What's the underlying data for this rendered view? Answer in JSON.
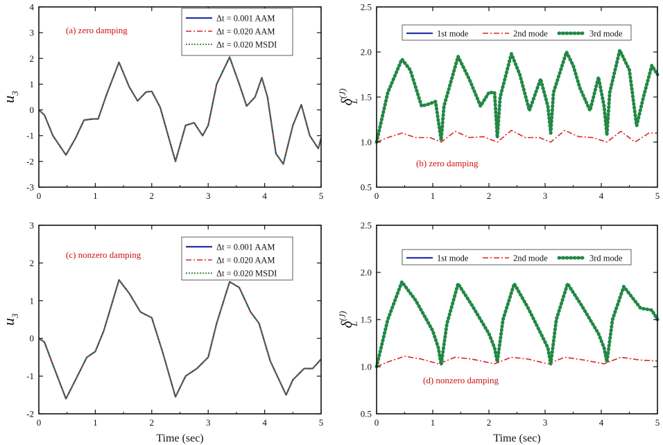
{
  "chart_data": [
    {
      "id": "a",
      "type": "line",
      "annotation": "(a)  zero damping",
      "ylabel": "u",
      "ylabel_sub": "3",
      "xlabel": "",
      "xlim": [
        0,
        5
      ],
      "ylim": [
        -3,
        4
      ],
      "xticks": [
        "0",
        "1",
        "2",
        "3",
        "4",
        "5"
      ],
      "yticks": [
        "-3",
        "-2",
        "-1",
        "0",
        "1",
        "2",
        "3",
        "4"
      ],
      "legend_loc": "top-right",
      "series": [
        {
          "name": "Δt = 0.001  AAM",
          "style": "solid",
          "color": "#2233aa",
          "x": [
            0,
            0.1,
            0.25,
            0.48,
            0.65,
            0.8,
            0.95,
            1.05,
            1.2,
            1.42,
            1.6,
            1.75,
            1.9,
            2.0,
            2.15,
            2.42,
            2.6,
            2.75,
            2.9,
            3.0,
            3.15,
            3.38,
            3.55,
            3.68,
            3.83,
            3.95,
            4.05,
            4.2,
            4.33,
            4.5,
            4.65,
            4.8,
            4.95,
            5.0
          ],
          "y": [
            0,
            -0.2,
            -1.0,
            -1.75,
            -1.1,
            -0.4,
            -0.35,
            -0.35,
            0.6,
            1.85,
            0.9,
            0.35,
            0.7,
            0.72,
            0.1,
            -2.0,
            -0.6,
            -0.5,
            -1.0,
            -0.6,
            1.0,
            2.05,
            1.0,
            0.15,
            0.5,
            1.25,
            0.5,
            -1.7,
            -2.1,
            -0.6,
            0.2,
            -1.0,
            -1.5,
            -1.1
          ]
        },
        {
          "name": "Δt = 0.020  AAM",
          "style": "dashdot",
          "color": "#dd2222",
          "x": [
            0,
            0.1,
            0.25,
            0.48,
            0.65,
            0.8,
            0.95,
            1.05,
            1.2,
            1.42,
            1.6,
            1.75,
            1.9,
            2.0,
            2.15,
            2.42,
            2.6,
            2.75,
            2.9,
            3.0,
            3.15,
            3.38,
            3.55,
            3.68,
            3.83,
            3.95,
            4.05,
            4.2,
            4.33,
            4.5,
            4.65,
            4.8,
            4.95,
            5.0
          ],
          "y": [
            0,
            -0.2,
            -1.0,
            -1.75,
            -1.1,
            -0.4,
            -0.35,
            -0.35,
            0.6,
            1.85,
            0.9,
            0.35,
            0.7,
            0.72,
            0.1,
            -2.0,
            -0.6,
            -0.5,
            -1.0,
            -0.6,
            1.0,
            2.05,
            1.0,
            0.15,
            0.5,
            1.25,
            0.5,
            -1.7,
            -2.1,
            -0.6,
            0.2,
            -1.0,
            -1.5,
            -1.1
          ]
        },
        {
          "name": "Δt = 0.020  MSDI",
          "style": "dotted",
          "color": "#228822",
          "x": [
            0,
            0.1,
            0.25,
            0.48,
            0.65,
            0.8,
            0.95,
            1.05,
            1.2,
            1.42,
            1.6,
            1.75,
            1.9,
            2.0,
            2.15,
            2.42,
            2.6,
            2.75,
            2.9,
            3.0,
            3.15,
            3.38,
            3.55,
            3.68,
            3.83,
            3.95,
            4.05,
            4.2,
            4.33,
            4.5,
            4.65,
            4.8,
            4.95,
            5.0
          ],
          "y": [
            0,
            -0.2,
            -1.0,
            -1.75,
            -1.1,
            -0.4,
            -0.35,
            -0.35,
            0.6,
            1.85,
            0.9,
            0.35,
            0.7,
            0.72,
            0.1,
            -2.0,
            -0.6,
            -0.5,
            -1.0,
            -0.6,
            1.0,
            2.05,
            1.0,
            0.15,
            0.5,
            1.25,
            0.5,
            -1.7,
            -2.1,
            -0.6,
            0.2,
            -1.0,
            -1.5,
            -1.1
          ]
        }
      ]
    },
    {
      "id": "b",
      "type": "line",
      "annotation": "(b)  zero damping",
      "ylabel": "δ",
      "ylabel_sub": "L",
      "ylabel_sup": "(J)",
      "xlabel": "",
      "xlim": [
        0,
        5
      ],
      "ylim": [
        0.5,
        2.5
      ],
      "xticks": [
        "0",
        "1",
        "2",
        "3",
        "4",
        "5"
      ],
      "yticks": [
        "0.5",
        "1.0",
        "1.5",
        "2.0",
        "2.5"
      ],
      "legend_loc": "top",
      "series": [
        {
          "name": "1st mode",
          "style": "solid",
          "color": "#2233aa",
          "x": [
            0,
            0.2,
            0.45,
            0.6,
            0.8,
            0.92,
            1.05,
            1.15,
            1.2,
            1.45,
            1.65,
            1.85,
            2.0,
            2.1,
            2.15,
            2.2,
            2.4,
            2.55,
            2.72,
            2.92,
            3.05,
            3.1,
            3.15,
            3.38,
            3.5,
            3.62,
            3.8,
            3.95,
            4.05,
            4.1,
            4.15,
            4.33,
            4.5,
            4.63,
            4.75,
            4.9,
            5.0
          ],
          "y": [
            1.0,
            1.55,
            1.92,
            1.8,
            1.4,
            1.42,
            1.45,
            1.02,
            1.4,
            1.95,
            1.7,
            1.4,
            1.55,
            1.55,
            1.05,
            1.5,
            1.98,
            1.75,
            1.35,
            1.7,
            1.4,
            1.1,
            1.55,
            2.0,
            1.85,
            1.6,
            1.35,
            1.72,
            1.4,
            1.08,
            1.55,
            2.02,
            1.8,
            1.18,
            1.5,
            1.85,
            1.75
          ]
        },
        {
          "name": "2nd mode",
          "style": "dashdot",
          "color": "#dd2222",
          "x": [
            0,
            0.2,
            0.45,
            0.7,
            0.95,
            1.15,
            1.4,
            1.65,
            1.9,
            2.15,
            2.4,
            2.65,
            2.9,
            3.1,
            3.35,
            3.6,
            3.85,
            4.1,
            4.35,
            4.6,
            4.85,
            5.0
          ],
          "y": [
            1.0,
            1.05,
            1.1,
            1.05,
            1.05,
            1.0,
            1.12,
            1.05,
            1.06,
            1.0,
            1.13,
            1.05,
            1.05,
            1.0,
            1.13,
            1.06,
            1.05,
            1.0,
            1.12,
            1.0,
            1.1,
            1.1
          ]
        },
        {
          "name": "3rd mode",
          "style": "dotted-thick",
          "color": "#228844",
          "x": [
            0,
            0.2,
            0.45,
            0.6,
            0.8,
            0.92,
            1.05,
            1.15,
            1.2,
            1.45,
            1.65,
            1.85,
            2.0,
            2.1,
            2.15,
            2.2,
            2.4,
            2.55,
            2.72,
            2.92,
            3.05,
            3.1,
            3.15,
            3.38,
            3.5,
            3.62,
            3.8,
            3.95,
            4.05,
            4.1,
            4.15,
            4.33,
            4.5,
            4.63,
            4.75,
            4.9,
            5.0
          ],
          "y": [
            1.0,
            1.55,
            1.92,
            1.8,
            1.4,
            1.42,
            1.45,
            1.02,
            1.4,
            1.95,
            1.7,
            1.4,
            1.55,
            1.55,
            1.05,
            1.5,
            1.98,
            1.75,
            1.35,
            1.7,
            1.4,
            1.1,
            1.55,
            2.0,
            1.85,
            1.6,
            1.35,
            1.72,
            1.4,
            1.08,
            1.55,
            2.02,
            1.8,
            1.18,
            1.5,
            1.85,
            1.75
          ]
        }
      ]
    },
    {
      "id": "c",
      "type": "line",
      "annotation": "(c)  nonzero damping",
      "ylabel": "u",
      "ylabel_sub": "3",
      "xlabel": "Time  (sec)",
      "xlim": [
        0,
        5
      ],
      "ylim": [
        -2,
        3
      ],
      "xticks": [
        "0",
        "1",
        "2",
        "3",
        "4",
        "5"
      ],
      "yticks": [
        "-2",
        "-1",
        "0",
        "1",
        "2",
        "3"
      ],
      "legend_loc": "top-right",
      "series": [
        {
          "name": "Δt = 0.001  AAM",
          "style": "solid",
          "color": "#2233aa",
          "x": [
            0,
            0.1,
            0.25,
            0.48,
            0.65,
            0.85,
            1.0,
            1.15,
            1.42,
            1.6,
            1.8,
            2.0,
            2.2,
            2.42,
            2.6,
            2.8,
            3.0,
            3.15,
            3.38,
            3.55,
            3.75,
            3.9,
            4.1,
            4.38,
            4.5,
            4.7,
            4.85,
            5.0
          ],
          "y": [
            0,
            -0.1,
            -0.7,
            -1.6,
            -1.1,
            -0.5,
            -0.35,
            0.2,
            1.55,
            1.2,
            0.7,
            0.55,
            -0.4,
            -1.55,
            -1.0,
            -0.8,
            -0.5,
            0.4,
            1.5,
            1.35,
            0.7,
            0.4,
            -0.6,
            -1.5,
            -1.1,
            -0.8,
            -0.8,
            -0.55
          ]
        },
        {
          "name": "Δt = 0.020  AAM",
          "style": "dashdot",
          "color": "#dd2222",
          "x": [
            0,
            0.1,
            0.25,
            0.48,
            0.65,
            0.85,
            1.0,
            1.15,
            1.42,
            1.6,
            1.8,
            2.0,
            2.2,
            2.42,
            2.6,
            2.8,
            3.0,
            3.15,
            3.38,
            3.55,
            3.75,
            3.9,
            4.1,
            4.38,
            4.5,
            4.7,
            4.85,
            5.0
          ],
          "y": [
            0,
            -0.1,
            -0.7,
            -1.6,
            -1.1,
            -0.5,
            -0.35,
            0.2,
            1.55,
            1.2,
            0.7,
            0.55,
            -0.4,
            -1.55,
            -1.0,
            -0.8,
            -0.5,
            0.4,
            1.5,
            1.35,
            0.7,
            0.4,
            -0.6,
            -1.5,
            -1.1,
            -0.8,
            -0.8,
            -0.55
          ]
        },
        {
          "name": "Δt = 0.020  MSDI",
          "style": "dotted",
          "color": "#228822",
          "x": [
            0,
            0.1,
            0.25,
            0.48,
            0.65,
            0.85,
            1.0,
            1.15,
            1.42,
            1.6,
            1.8,
            2.0,
            2.2,
            2.42,
            2.6,
            2.8,
            3.0,
            3.15,
            3.38,
            3.55,
            3.75,
            3.9,
            4.1,
            4.38,
            4.5,
            4.7,
            4.85,
            5.0
          ],
          "y": [
            0,
            -0.1,
            -0.7,
            -1.6,
            -1.1,
            -0.5,
            -0.35,
            0.2,
            1.55,
            1.2,
            0.7,
            0.55,
            -0.4,
            -1.55,
            -1.0,
            -0.8,
            -0.5,
            0.4,
            1.5,
            1.35,
            0.7,
            0.4,
            -0.6,
            -1.5,
            -1.1,
            -0.8,
            -0.8,
            -0.55
          ]
        }
      ]
    },
    {
      "id": "d",
      "type": "line",
      "annotation": "(d)  nonzero damping",
      "ylabel": "δ",
      "ylabel_sub": "L",
      "ylabel_sup": "(J)",
      "xlabel": "Time  (sec)",
      "xlim": [
        0,
        5
      ],
      "ylim": [
        0.5,
        2.5
      ],
      "xticks": [
        "0",
        "1",
        "2",
        "3",
        "4",
        "5"
      ],
      "yticks": [
        "0.5",
        "1.0",
        "1.5",
        "2.0",
        "2.5"
      ],
      "legend_loc": "top",
      "series": [
        {
          "name": "1st mode",
          "style": "solid",
          "color": "#2233aa",
          "x": [
            0,
            0.2,
            0.45,
            0.7,
            1.0,
            1.1,
            1.15,
            1.25,
            1.45,
            1.7,
            2.0,
            2.1,
            2.15,
            2.25,
            2.45,
            2.7,
            2.95,
            3.05,
            3.1,
            3.2,
            3.4,
            3.65,
            3.95,
            4.05,
            4.1,
            4.2,
            4.4,
            4.7,
            4.9,
            5.0
          ],
          "y": [
            1.0,
            1.5,
            1.9,
            1.7,
            1.38,
            1.2,
            1.02,
            1.45,
            1.88,
            1.65,
            1.35,
            1.2,
            1.05,
            1.5,
            1.88,
            1.62,
            1.32,
            1.2,
            1.03,
            1.5,
            1.88,
            1.65,
            1.35,
            1.2,
            1.05,
            1.5,
            1.85,
            1.62,
            1.6,
            1.5
          ]
        },
        {
          "name": "2nd mode",
          "style": "dashdot",
          "color": "#dd2222",
          "x": [
            0,
            0.2,
            0.5,
            0.8,
            1.1,
            1.4,
            1.7,
            2.1,
            2.4,
            2.7,
            3.05,
            3.35,
            3.7,
            4.05,
            4.35,
            4.7,
            5.0
          ],
          "y": [
            1.0,
            1.05,
            1.11,
            1.08,
            1.03,
            1.1,
            1.08,
            1.03,
            1.1,
            1.08,
            1.03,
            1.1,
            1.07,
            1.03,
            1.1,
            1.07,
            1.06
          ]
        },
        {
          "name": "3rd mode",
          "style": "dotted-thick",
          "color": "#228844",
          "x": [
            0,
            0.2,
            0.45,
            0.7,
            1.0,
            1.1,
            1.15,
            1.25,
            1.45,
            1.7,
            2.0,
            2.1,
            2.15,
            2.25,
            2.45,
            2.7,
            2.95,
            3.05,
            3.1,
            3.2,
            3.4,
            3.65,
            3.95,
            4.05,
            4.1,
            4.2,
            4.4,
            4.7,
            4.9,
            5.0
          ],
          "y": [
            1.0,
            1.5,
            1.9,
            1.7,
            1.38,
            1.2,
            1.02,
            1.45,
            1.88,
            1.65,
            1.35,
            1.2,
            1.05,
            1.5,
            1.88,
            1.62,
            1.32,
            1.2,
            1.03,
            1.5,
            1.88,
            1.65,
            1.35,
            1.2,
            1.05,
            1.5,
            1.85,
            1.62,
            1.6,
            1.5
          ]
        }
      ]
    }
  ]
}
